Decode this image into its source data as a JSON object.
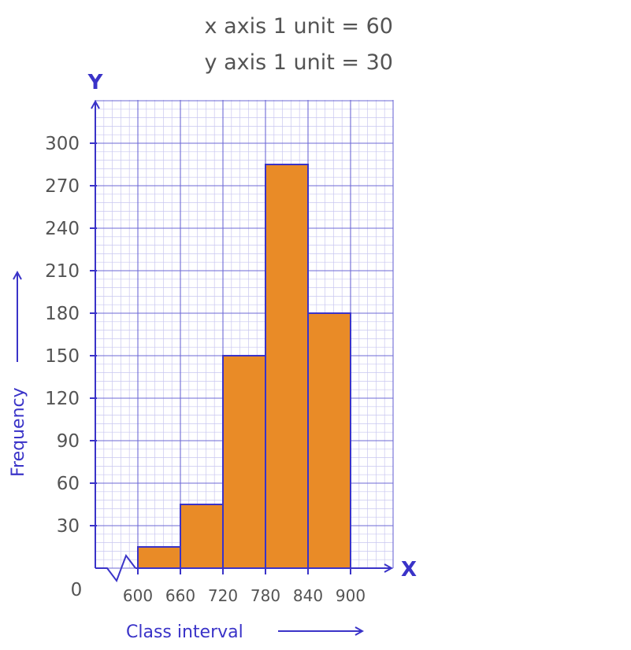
{
  "scale_notes": {
    "x_unit": "x axis 1 unit = 60",
    "y_unit": "y axis 1 unit = 30"
  },
  "colors": {
    "axis": "#3a33c8",
    "grid_major": "#6e6ad6",
    "grid_minor": "#c9c7f0",
    "bar_fill": "#e98b27",
    "bar_stroke": "#3a33c8",
    "text": "#545454"
  },
  "chart_data": {
    "type": "bar",
    "title": "",
    "xlabel": "Class interval",
    "ylabel": "Frequency",
    "x_axis_letter": "X",
    "y_axis_letter": "Y",
    "origin_label": "0",
    "x_break": true,
    "x_ticks": [
      "600",
      "660",
      "720",
      "780",
      "840",
      "900"
    ],
    "x_tick_values": [
      600,
      660,
      720,
      780,
      840,
      900
    ],
    "y_ticks": [
      "30",
      "60",
      "90",
      "120",
      "150",
      "180",
      "210",
      "240",
      "270",
      "300"
    ],
    "y_tick_values": [
      30,
      60,
      90,
      120,
      150,
      180,
      210,
      240,
      270,
      300
    ],
    "bins": [
      {
        "from": 600,
        "to": 660,
        "value": 15
      },
      {
        "from": 660,
        "to": 720,
        "value": 45
      },
      {
        "from": 720,
        "to": 780,
        "value": 150
      },
      {
        "from": 780,
        "to": 840,
        "value": 285
      },
      {
        "from": 840,
        "to": 900,
        "value": 180
      }
    ],
    "ylim": [
      0,
      330
    ],
    "grid": true
  }
}
